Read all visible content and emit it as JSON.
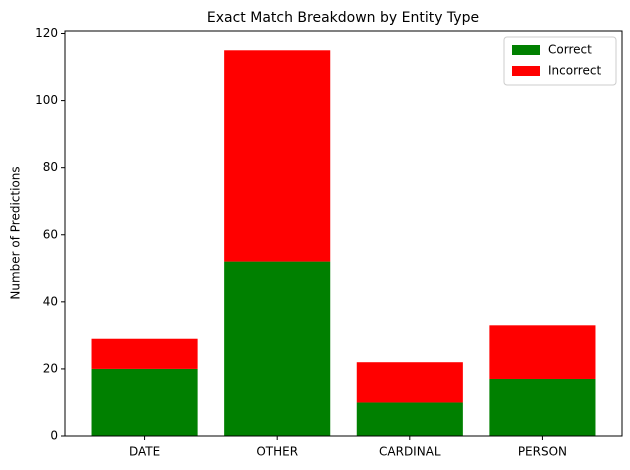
{
  "chart_data": {
    "type": "bar",
    "stacked": true,
    "title": "Exact Match Breakdown by Entity Type",
    "ylabel": "Number of Predictions",
    "categories": [
      "DATE",
      "OTHER",
      "CARDINAL",
      "PERSON"
    ],
    "series": [
      {
        "name": "Correct",
        "color": "#008000",
        "values": [
          20,
          52,
          10,
          17
        ]
      },
      {
        "name": "Incorrect",
        "color": "#ff0000",
        "values": [
          9,
          63,
          12,
          16
        ]
      }
    ],
    "ylim": [
      0,
      120.75
    ],
    "yticks": [
      0,
      20,
      40,
      60,
      80,
      100,
      120
    ],
    "legend": "upper right",
    "grid": false
  }
}
